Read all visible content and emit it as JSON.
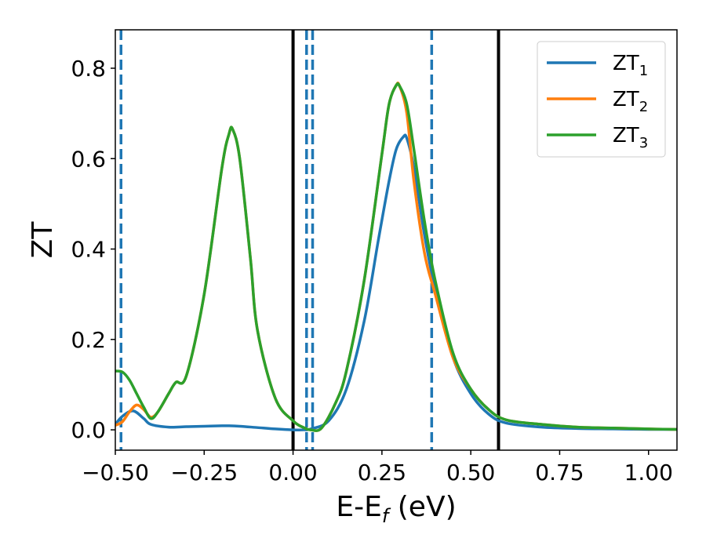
{
  "chart_data": {
    "type": "line",
    "xlabel": {
      "main": "E-E",
      "sub": "f",
      "unit": " (eV)"
    },
    "ylabel": "ZT",
    "xlim": [
      -0.5,
      1.08
    ],
    "ylim": [
      -0.045,
      0.885
    ],
    "xticks": [
      -0.5,
      -0.25,
      0.0,
      0.25,
      0.5,
      0.75,
      1.0
    ],
    "xtick_labels": [
      "−0.50",
      "−0.25",
      "0.00",
      "0.25",
      "0.50",
      "0.75",
      "1.00"
    ],
    "yticks": [
      0.0,
      0.2,
      0.4,
      0.6,
      0.8
    ],
    "ytick_labels": [
      "0.0",
      "0.2",
      "0.4",
      "0.6",
      "0.8"
    ],
    "grid": false,
    "legend": {
      "placement": "top-right",
      "entries": [
        {
          "main": "ZT",
          "sub": "1"
        },
        {
          "main": "ZT",
          "sub": "2"
        },
        {
          "main": "ZT",
          "sub": "3"
        }
      ]
    },
    "series": [
      {
        "name": "ZT1",
        "color": "#1f77b4",
        "x": [
          -0.5,
          -0.48,
          -0.45,
          -0.42,
          -0.4,
          -0.35,
          -0.3,
          -0.25,
          -0.2,
          -0.18,
          -0.15,
          -0.1,
          -0.05,
          0.0,
          0.03,
          0.05,
          0.1,
          0.15,
          0.2,
          0.24,
          0.27,
          0.29,
          0.31,
          0.32,
          0.34,
          0.37,
          0.4,
          0.45,
          0.5,
          0.55,
          0.6,
          0.7,
          0.8,
          0.9,
          1.0,
          1.08
        ],
        "y": [
          0.012,
          0.03,
          0.042,
          0.025,
          0.012,
          0.006,
          0.007,
          0.008,
          0.009,
          0.009,
          0.008,
          0.005,
          0.002,
          0.0,
          0.0,
          0.002,
          0.02,
          0.09,
          0.24,
          0.42,
          0.55,
          0.62,
          0.648,
          0.645,
          0.58,
          0.43,
          0.31,
          0.16,
          0.08,
          0.035,
          0.015,
          0.006,
          0.003,
          0.002,
          0.001,
          0.001
        ]
      },
      {
        "name": "ZT2",
        "color": "#ff7f0e",
        "x": [
          -0.5,
          -0.48,
          -0.46,
          -0.44,
          -0.42,
          -0.4,
          -0.38,
          -0.35,
          -0.33,
          -0.3,
          -0.25,
          -0.2,
          -0.18,
          -0.17,
          -0.15,
          -0.12,
          -0.1,
          -0.05,
          0.0,
          0.03,
          0.05,
          0.08,
          0.12,
          0.15,
          0.2,
          0.25,
          0.27,
          0.29,
          0.3,
          0.32,
          0.34,
          0.37,
          0.4,
          0.45,
          0.5,
          0.55,
          0.6,
          0.7,
          0.8,
          0.9,
          1.0,
          1.08
        ],
        "y": [
          0.01,
          0.018,
          0.04,
          0.055,
          0.045,
          0.028,
          0.04,
          0.08,
          0.105,
          0.12,
          0.3,
          0.58,
          0.655,
          0.665,
          0.6,
          0.38,
          0.22,
          0.07,
          0.02,
          0.005,
          0.0,
          0.004,
          0.06,
          0.13,
          0.33,
          0.61,
          0.72,
          0.762,
          0.76,
          0.7,
          0.55,
          0.39,
          0.3,
          0.16,
          0.09,
          0.045,
          0.022,
          0.012,
          0.006,
          0.004,
          0.002,
          0.001
        ]
      },
      {
        "name": "ZT3",
        "color": "#2ca02c",
        "x": [
          -0.5,
          -0.48,
          -0.46,
          -0.44,
          -0.42,
          -0.4,
          -0.38,
          -0.35,
          -0.33,
          -0.3,
          -0.25,
          -0.2,
          -0.18,
          -0.17,
          -0.15,
          -0.12,
          -0.1,
          -0.05,
          0.0,
          0.03,
          0.05,
          0.08,
          0.12,
          0.15,
          0.2,
          0.25,
          0.27,
          0.29,
          0.3,
          0.32,
          0.34,
          0.37,
          0.4,
          0.45,
          0.5,
          0.55,
          0.6,
          0.7,
          0.8,
          0.9,
          1.0,
          1.08
        ],
        "y": [
          0.13,
          0.128,
          0.11,
          0.08,
          0.05,
          0.025,
          0.04,
          0.08,
          0.105,
          0.12,
          0.3,
          0.58,
          0.655,
          0.665,
          0.6,
          0.38,
          0.22,
          0.07,
          0.02,
          0.005,
          0.0,
          0.004,
          0.06,
          0.13,
          0.33,
          0.61,
          0.72,
          0.762,
          0.76,
          0.72,
          0.62,
          0.46,
          0.33,
          0.17,
          0.09,
          0.045,
          0.022,
          0.012,
          0.006,
          0.004,
          0.002,
          0.001
        ]
      }
    ],
    "vlines": [
      {
        "x": -0.484,
        "style": "dashed",
        "color": "#1f77b4"
      },
      {
        "x": 0.0,
        "style": "solid",
        "color": "#000000"
      },
      {
        "x": 0.038,
        "style": "dashed",
        "color": "#1f77b4"
      },
      {
        "x": 0.055,
        "style": "dashed",
        "color": "#1f77b4"
      },
      {
        "x": 0.39,
        "style": "dashed",
        "color": "#1f77b4"
      },
      {
        "x": 0.578,
        "style": "solid",
        "color": "#000000"
      }
    ]
  }
}
